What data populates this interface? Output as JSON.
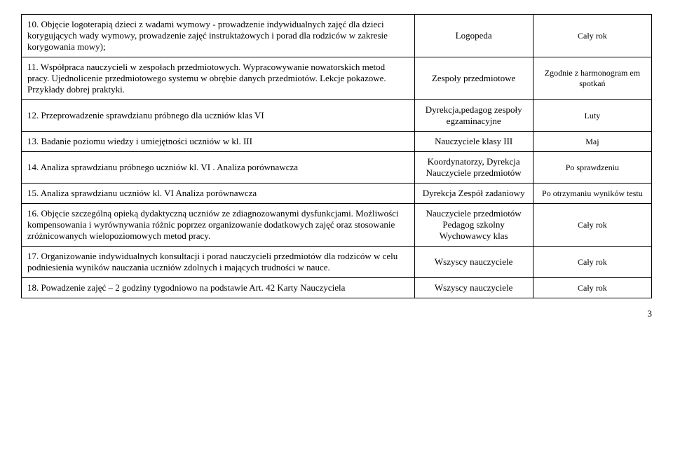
{
  "rows": [
    {
      "desc": "10. Objęcie logoterapią dzieci z wadami wymowy - prowadzenie indywidualnych zajęć dla dzieci korygujących wady wymowy, prowadzenie zajęć instruktażowych i porad dla rodziców w zakresie korygowania mowy);",
      "resp": "Logopeda",
      "time": "Cały rok"
    },
    {
      "desc": "11. Współpraca nauczycieli w zespołach przedmiotowych. Wypracowywanie nowatorskich metod pracy. Ujednolicenie przedmiotowego systemu w obrębie danych przedmiotów. Lekcje pokazowe. Przykłady dobrej praktyki.",
      "resp": "Zespoły przedmiotowe",
      "time": "Zgodnie z harmonogram em spotkań"
    },
    {
      "desc": "12. Przeprowadzenie sprawdzianu próbnego dla uczniów klas VI",
      "resp": "Dyrekcja,pedagog zespoły egzaminacyjne",
      "time": "Luty"
    },
    {
      "desc": "13. Badanie poziomu wiedzy i umiejętności uczniów w kl. III",
      "resp": "Nauczyciele klasy III",
      "time": "Maj"
    },
    {
      "desc": "14. Analiza sprawdzianu próbnego uczniów kl. VI . Analiza porównawcza",
      "resp": "Koordynatorzy, Dyrekcja Nauczyciele przedmiotów",
      "time": "Po sprawdzeniu"
    },
    {
      "desc": "15. Analiza sprawdzianu uczniów kl. VI Analiza porównawcza",
      "resp": "Dyrekcja Zespół zadaniowy",
      "time": "Po otrzymaniu wyników testu"
    },
    {
      "desc": "16. Objęcie szczególną opieką dydaktyczną uczniów ze zdiagnozowanymi dysfunkcjami. Możliwości kompensowania i wyrównywania różnic poprzez organizowanie dodatkowych zajęć oraz stosowanie zróżnicowanych wielopoziomowych metod pracy.",
      "resp": "Nauczyciele przedmiotów Pedagog szkolny Wychowawcy klas",
      "time": "Cały rok"
    },
    {
      "desc": "17. Organizowanie indywidualnych konsultacji i porad nauczycieli przedmiotów dla rodziców w celu podniesienia wyników nauczania uczniów zdolnych i mających trudności w nauce.",
      "resp": "Wszyscy nauczyciele",
      "time": "Cały rok"
    },
    {
      "desc": "18. Powadzenie zajęć – 2 godziny tygodniowo na podstawie Art. 42 Karty Nauczyciela",
      "resp": "Wszyscy nauczyciele",
      "time": "Cały rok"
    }
  ],
  "page_number": "3"
}
